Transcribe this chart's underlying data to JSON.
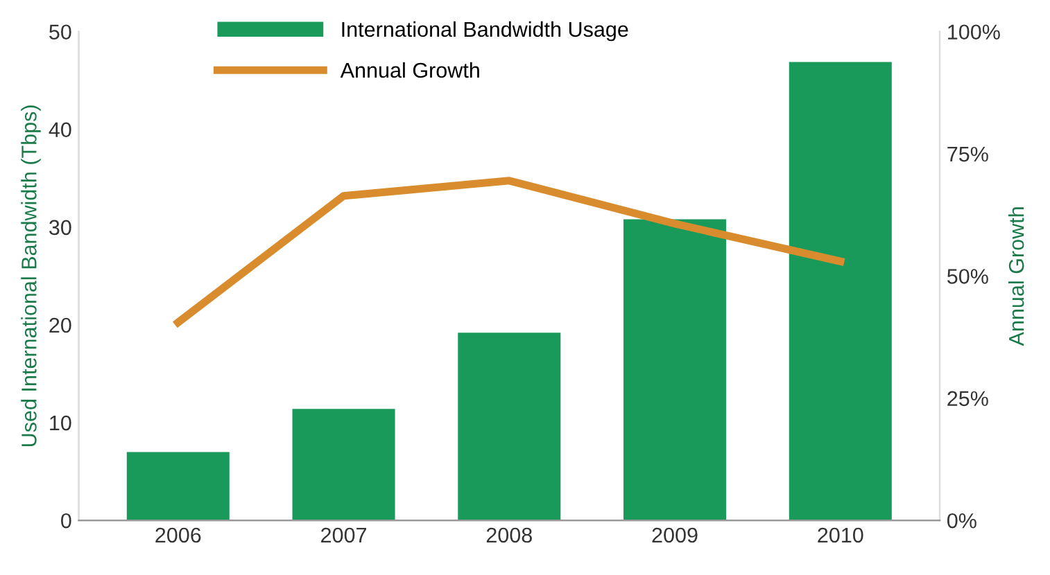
{
  "chart_data": {
    "type": "bar",
    "categories": [
      "2006",
      "2007",
      "2008",
      "2009",
      "2010"
    ],
    "ylabel": "Used International Bandwidth (Tbps)",
    "y2label": "Annual Growth",
    "ylim": [
      0,
      50
    ],
    "yticks": [
      0,
      10,
      20,
      30,
      40,
      50
    ],
    "y2lim": [
      0,
      100
    ],
    "y2ticks": [
      {
        "value": 0,
        "label": "0%"
      },
      {
        "value": 25,
        "label": "25%"
      },
      {
        "value": 50,
        "label": "50%"
      },
      {
        "value": 75,
        "label": "75%"
      },
      {
        "value": 100,
        "label": "100%"
      }
    ],
    "series": [
      {
        "name": "International Bandwidth Usage",
        "color": "#1a9a5a",
        "values": [
          7.0,
          11.4,
          19.2,
          30.8,
          46.9
        ]
      },
      {
        "name": "Annual Growth",
        "type": "line",
        "axis": "y2",
        "color": "#d98c2e",
        "values": [
          40.5,
          66.4,
          69.5,
          60.7,
          53
        ]
      }
    ],
    "legend": "top",
    "grid": false,
    "marker": "none"
  }
}
